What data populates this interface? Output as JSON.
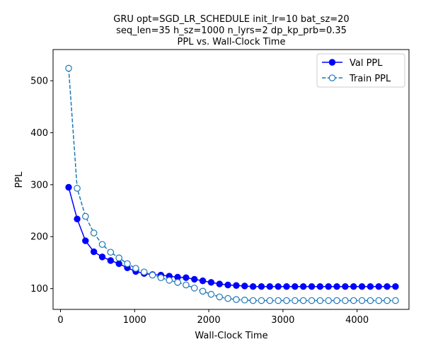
{
  "chart_data": {
    "type": "line",
    "title_lines": [
      "GRU opt=SGD_LR_SCHEDULE init_lr=10 bat_sz=20",
      "seq_len=35 h_sz=1000 n_lyrs=2 dp_kp_prb=0.35",
      "PPL vs. Wall-Clock Time"
    ],
    "xlabel": "Wall-Clock Time",
    "ylabel": "PPL",
    "xlim": [
      -100,
      4700
    ],
    "ylim": [
      60,
      560
    ],
    "xticks": [
      0,
      1000,
      2000,
      3000,
      4000
    ],
    "yticks": [
      100,
      200,
      300,
      400,
      500
    ],
    "legend_position": "top-right",
    "x": [
      110,
      225,
      337,
      450,
      563,
      676,
      789,
      902,
      1015,
      1128,
      1241,
      1354,
      1467,
      1580,
      1693,
      1806,
      1919,
      2032,
      2145,
      2258,
      2371,
      2484,
      2597,
      2710,
      2823,
      2936,
      3049,
      3162,
      3275,
      3388,
      3501,
      3614,
      3727,
      3840,
      3953,
      4066,
      4179,
      4292,
      4405,
      4518
    ],
    "series": [
      {
        "name": "Val PPL",
        "color": "#0000ff",
        "line_style": "solid",
        "marker": "filled-circle",
        "values": [
          295,
          234,
          192,
          171,
          161,
          154,
          148,
          140,
          133,
          129,
          127,
          126,
          124,
          122,
          121,
          118,
          115,
          112,
          109,
          107,
          106,
          105,
          104,
          104,
          104,
          104,
          104,
          104,
          104,
          104,
          104,
          104,
          104,
          104,
          104,
          104,
          104,
          104,
          104,
          104
        ]
      },
      {
        "name": "Train PPL",
        "color": "#1f77b4",
        "line_style": "dashed",
        "marker": "open-circle",
        "values": [
          524,
          293,
          239,
          207,
          185,
          170,
          159,
          148,
          139,
          132,
          126,
          121,
          116,
          112,
          107,
          101,
          95,
          89,
          84,
          81,
          79,
          78,
          77,
          77,
          77,
          77,
          77,
          77,
          77,
          77,
          77,
          77,
          77,
          77,
          77,
          77,
          77,
          77,
          77,
          77
        ]
      }
    ]
  }
}
